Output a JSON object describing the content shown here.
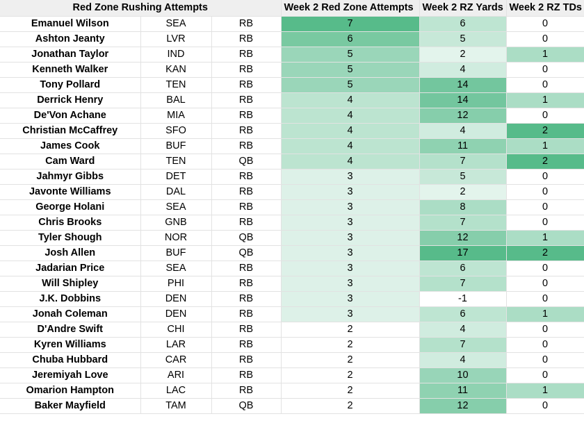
{
  "header": {
    "title": "Red Zone Rushing Attempts",
    "col_attempts": "Week 2 Red Zone Attempts",
    "col_yards": "Week 2 RZ Yards",
    "col_tds": "Week 2 RZ TDs"
  },
  "rows": [
    {
      "name": "Emanuel Wilson",
      "team": "SEA",
      "pos": "RB",
      "att": "7",
      "yds": "6",
      "tds": "0"
    },
    {
      "name": "Ashton Jeanty",
      "team": "LVR",
      "pos": "RB",
      "att": "6",
      "yds": "5",
      "tds": "0"
    },
    {
      "name": "Jonathan Taylor",
      "team": "IND",
      "pos": "RB",
      "att": "5",
      "yds": "2",
      "tds": "1"
    },
    {
      "name": "Kenneth Walker",
      "team": "KAN",
      "pos": "RB",
      "att": "5",
      "yds": "4",
      "tds": "0"
    },
    {
      "name": "Tony Pollard",
      "team": "TEN",
      "pos": "RB",
      "att": "5",
      "yds": "14",
      "tds": "0"
    },
    {
      "name": "Derrick Henry",
      "team": "BAL",
      "pos": "RB",
      "att": "4",
      "yds": "14",
      "tds": "1"
    },
    {
      "name": "De'Von Achane",
      "team": "MIA",
      "pos": "RB",
      "att": "4",
      "yds": "12",
      "tds": "0"
    },
    {
      "name": "Christian McCaffrey",
      "team": "SFO",
      "pos": "RB",
      "att": "4",
      "yds": "4",
      "tds": "2"
    },
    {
      "name": "James Cook",
      "team": "BUF",
      "pos": "RB",
      "att": "4",
      "yds": "11",
      "tds": "1"
    },
    {
      "name": "Cam Ward",
      "team": "TEN",
      "pos": "QB",
      "att": "4",
      "yds": "7",
      "tds": "2"
    },
    {
      "name": "Jahmyr Gibbs",
      "team": "DET",
      "pos": "RB",
      "att": "3",
      "yds": "5",
      "tds": "0"
    },
    {
      "name": "Javonte Williams",
      "team": "DAL",
      "pos": "RB",
      "att": "3",
      "yds": "2",
      "tds": "0"
    },
    {
      "name": "George Holani",
      "team": "SEA",
      "pos": "RB",
      "att": "3",
      "yds": "8",
      "tds": "0"
    },
    {
      "name": "Chris Brooks",
      "team": "GNB",
      "pos": "RB",
      "att": "3",
      "yds": "7",
      "tds": "0"
    },
    {
      "name": "Tyler Shough",
      "team": "NOR",
      "pos": "QB",
      "att": "3",
      "yds": "12",
      "tds": "1"
    },
    {
      "name": "Josh Allen",
      "team": "BUF",
      "pos": "QB",
      "att": "3",
      "yds": "17",
      "tds": "2"
    },
    {
      "name": "Jadarian Price",
      "team": "SEA",
      "pos": "RB",
      "att": "3",
      "yds": "6",
      "tds": "0"
    },
    {
      "name": "Will Shipley",
      "team": "PHI",
      "pos": "RB",
      "att": "3",
      "yds": "7",
      "tds": "0"
    },
    {
      "name": "J.K. Dobbins",
      "team": "DEN",
      "pos": "RB",
      "att": "3",
      "yds": "-1",
      "tds": "0"
    },
    {
      "name": "Jonah Coleman",
      "team": "DEN",
      "pos": "RB",
      "att": "3",
      "yds": "6",
      "tds": "1"
    },
    {
      "name": "D'Andre Swift",
      "team": "CHI",
      "pos": "RB",
      "att": "2",
      "yds": "4",
      "tds": "0"
    },
    {
      "name": "Kyren Williams",
      "team": "LAR",
      "pos": "RB",
      "att": "2",
      "yds": "7",
      "tds": "0"
    },
    {
      "name": "Chuba Hubbard",
      "team": "CAR",
      "pos": "RB",
      "att": "2",
      "yds": "4",
      "tds": "0"
    },
    {
      "name": "Jeremiyah Love",
      "team": "ARI",
      "pos": "RB",
      "att": "2",
      "yds": "10",
      "tds": "0"
    },
    {
      "name": "Omarion Hampton",
      "team": "LAC",
      "pos": "RB",
      "att": "2",
      "yds": "11",
      "tds": "1"
    },
    {
      "name": "Baker Mayfield",
      "team": "TAM",
      "pos": "QB",
      "att": "2",
      "yds": "12",
      "tds": "0"
    }
  ],
  "colors": {
    "header_bg": "#efefef",
    "heat_low": "#ffffff",
    "heat_high": "#57bb8a",
    "grid": "#e2e2e2"
  }
}
